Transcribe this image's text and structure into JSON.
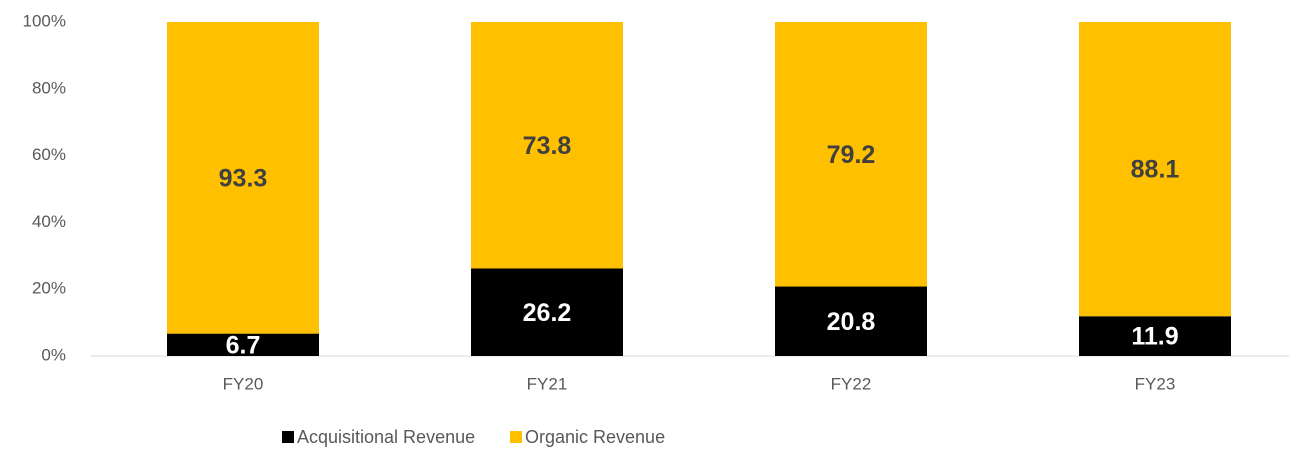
{
  "chart_data": {
    "type": "bar",
    "stacked": true,
    "categories": [
      "FY20",
      "FY21",
      "FY22",
      "FY23"
    ],
    "series": [
      {
        "name": "Acquisitional Revenue",
        "color": "#000000",
        "values": [
          6.7,
          26.2,
          20.8,
          11.9
        ]
      },
      {
        "name": "Organic Revenue",
        "color": "#FFC000",
        "values": [
          93.3,
          73.8,
          79.2,
          88.1
        ]
      }
    ],
    "ylim": [
      0,
      100
    ],
    "yticks": [
      {
        "value": 0,
        "label": "0%"
      },
      {
        "value": 20,
        "label": "20%"
      },
      {
        "value": 40,
        "label": "40%"
      },
      {
        "value": 60,
        "label": "60%"
      },
      {
        "value": 80,
        "label": "80%"
      },
      {
        "value": 100,
        "label": "100%"
      }
    ],
    "legend": "bottom"
  }
}
